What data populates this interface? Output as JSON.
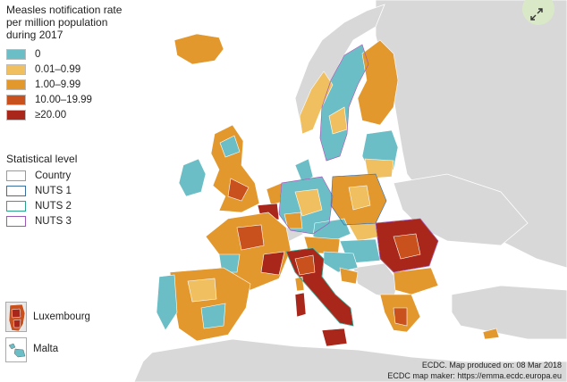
{
  "legend": {
    "title": "Measles notification rate\nper million population\nduring 2017",
    "classes": [
      {
        "label": "0",
        "color": "#6bbec5"
      },
      {
        "label": "0.01–0.99",
        "color": "#f0c060"
      },
      {
        "label": "1.00–9.99",
        "color": "#e3982e"
      },
      {
        "label": "10.00–19.99",
        "color": "#c8511d"
      },
      {
        "label": "≥20.00",
        "color": "#a8261a"
      }
    ]
  },
  "statistical_level": {
    "title": "Statistical level",
    "levels": [
      {
        "label": "Country",
        "color": "#999999"
      },
      {
        "label": "NUTS 1",
        "color": "#3b6ea0"
      },
      {
        "label": "NUTS 2",
        "color": "#2aa38a"
      },
      {
        "label": "NUTS 3",
        "color": "#9b59b6"
      }
    ]
  },
  "insets": {
    "luxembourg": "Luxembourg",
    "malta": "Malta"
  },
  "credits": {
    "line1": "ECDC. Map produced on: 08 Mar 2018",
    "line2": "ECDC map maker: https://emma.ecdc.europa.eu"
  },
  "colors": {
    "sea": "#ffffff",
    "non_eu_land": "#d8d8d8",
    "border": "#ffffff"
  },
  "controls": {
    "expand_icon": "expand-arrows-icon"
  }
}
